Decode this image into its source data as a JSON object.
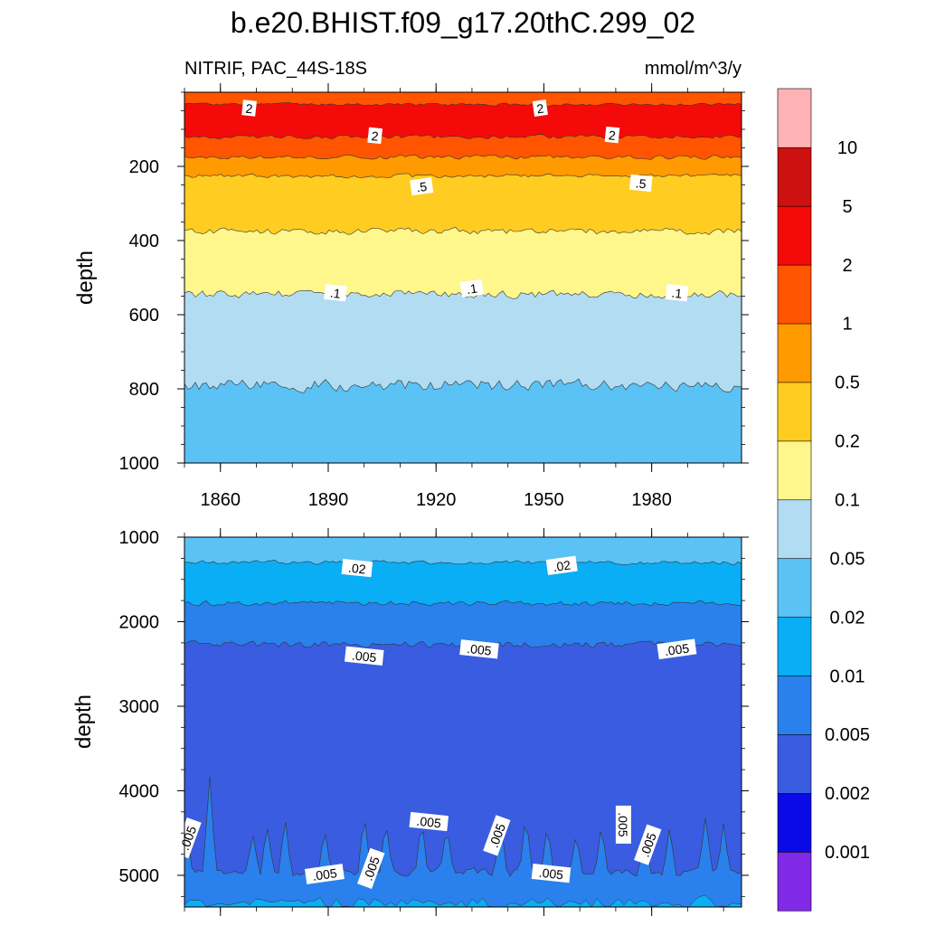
{
  "chart_data": {
    "type": "heatmap",
    "title": "b.e20.BHIST.f09_g17.20thC.299_02",
    "subtitle_left": "NITRIF, PAC_44S-18S",
    "subtitle_right": "mmol/m^3/y",
    "ylabel": "depth",
    "y_inverted": true,
    "colorbar": {
      "levels": [
        "0.001",
        "0.002",
        "0.005",
        "0.01",
        "0.02",
        "0.05",
        "0.1",
        "0.2",
        "0.5",
        "1",
        "2",
        "5",
        "10"
      ],
      "colors": [
        "#8029e6",
        "#0a0ae6",
        "#3a5ce0",
        "#2a80ec",
        "#0aaef5",
        "#5ac2f4",
        "#b2dcf2",
        "#fff68c",
        "#ffcd22",
        "#ff9a00",
        "#ff5500",
        "#f50a0a",
        "#cd1010",
        "#ffb2b5"
      ]
    },
    "panels": [
      {
        "name": "upper",
        "xlim": [
          1850,
          2005
        ],
        "ylim": [
          1000,
          0
        ],
        "x_ticks": [
          1860,
          1890,
          1920,
          1950,
          1980
        ],
        "x_tick_labels": [
          "1860",
          "1890",
          "1920",
          "1950",
          "1980"
        ],
        "y_ticks": [
          200,
          400,
          600,
          800,
          1000
        ],
        "y_tick_labels": [
          "200",
          "400",
          "600",
          "800",
          "1000"
        ],
        "contour_labels": [
          {
            "text": "2",
            "x": 1868,
            "y": 44
          },
          {
            "text": "2",
            "x": 1949,
            "y": 44
          },
          {
            "text": "2",
            "x": 1903,
            "y": 118
          },
          {
            "text": "2",
            "x": 1969,
            "y": 116
          },
          {
            "text": ".5",
            "x": 1916,
            "y": 255
          },
          {
            "text": ".5",
            "x": 1977,
            "y": 246
          },
          {
            "text": ".1",
            "x": 1892,
            "y": 542
          },
          {
            "text": ".1",
            "x": 1930,
            "y": 530
          },
          {
            "text": ".1",
            "x": 1987,
            "y": 542
          }
        ]
      },
      {
        "name": "lower",
        "xlim": [
          1850,
          2005
        ],
        "ylim": [
          5375,
          1000
        ],
        "y_ticks": [
          1000,
          2000,
          3000,
          4000,
          5000
        ],
        "y_tick_labels": [
          "1000",
          "2000",
          "3000",
          "4000",
          "5000"
        ],
        "contour_labels": [
          {
            "text": ".02",
            "x": 1898,
            "y": 1370
          },
          {
            "text": ".02",
            "x": 1955,
            "y": 1340
          },
          {
            "text": ".005",
            "x": 1900,
            "y": 2410
          },
          {
            "text": ".005",
            "x": 1932,
            "y": 2330
          },
          {
            "text": ".005",
            "x": 1987,
            "y": 2330
          },
          {
            "text": ".005",
            "x": 1851,
            "y": 4560
          },
          {
            "text": ".005",
            "x": 1918,
            "y": 4370
          },
          {
            "text": ".005",
            "x": 1937,
            "y": 4530
          },
          {
            "text": ".005",
            "x": 1972,
            "y": 4400
          },
          {
            "text": ".005",
            "x": 1979,
            "y": 4640
          },
          {
            "text": ".005",
            "x": 1889,
            "y": 4990
          },
          {
            "text": ".005",
            "x": 1902,
            "y": 4920
          },
          {
            "text": ".005",
            "x": 1952,
            "y": 4980
          }
        ]
      }
    ]
  }
}
